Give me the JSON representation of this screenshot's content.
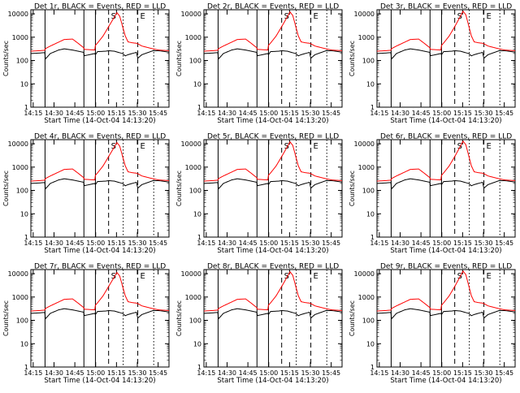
{
  "chart_data": [
    {
      "type": "line",
      "title": "Det 1r, BLACK = Events, RED = LLD",
      "variant": 0
    },
    {
      "type": "line",
      "title": "Det 2r, BLACK = Events, RED = LLD",
      "variant": 1
    },
    {
      "type": "line",
      "title": "Det 3r, BLACK = Events, RED = LLD",
      "variant": 2
    },
    {
      "type": "line",
      "title": "Det 4r, BLACK = Events, RED = LLD",
      "variant": 3
    },
    {
      "type": "line",
      "title": "Det 5r, BLACK = Events, RED = LLD",
      "variant": 4
    },
    {
      "type": "line",
      "title": "Det 6r, BLACK = Events, RED = LLD",
      "variant": 5
    },
    {
      "type": "line",
      "title": "Det 7r, BLACK = Events, RED = LLD",
      "variant": 6
    },
    {
      "type": "line",
      "title": "Det 8r, BLACK = Events, RED = LLD",
      "variant": 7
    },
    {
      "type": "line",
      "title": "Det 9r, BLACK = Events, RED = LLD",
      "variant": 8
    }
  ],
  "common": {
    "xlabel": "Start Time (14-Oct-04 14:13:20)",
    "ylabel": "Counts/sec",
    "x_ticks": [
      "14:15",
      "14:30",
      "14:45",
      "15:00",
      "15:15",
      "15:30",
      "15:45"
    ],
    "y_ticks": [
      "1",
      "10",
      "100",
      "1000",
      "10000"
    ],
    "y_scale": "log",
    "ylim": [
      1,
      15000
    ],
    "marker_letters": [
      "S",
      "E"
    ],
    "colors": {
      "events": "#000000",
      "lld": "#ff0000"
    }
  }
}
